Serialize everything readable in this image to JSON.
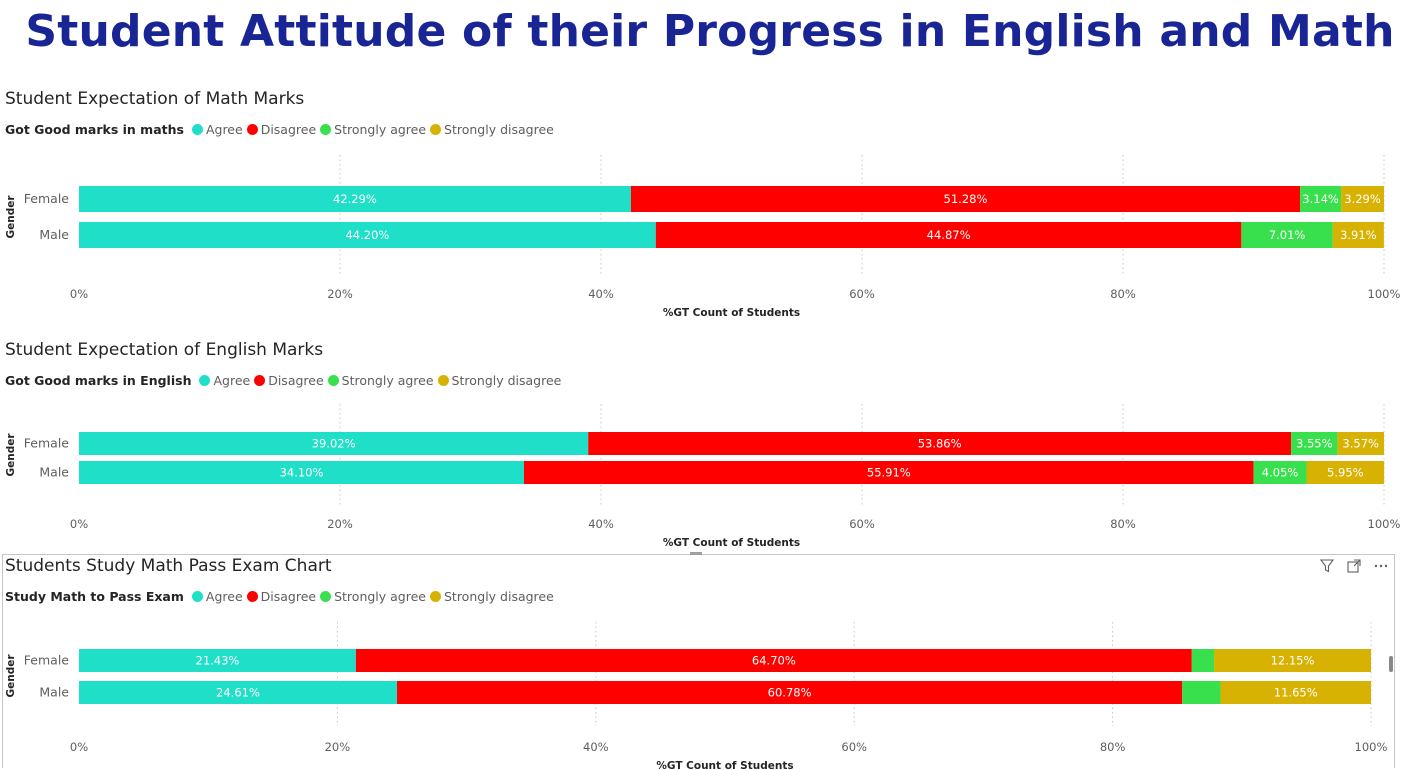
{
  "page": {
    "title": "Student Attitude of their Progress in English and Math"
  },
  "colors": {
    "Agree": "#20dfc8",
    "Disagree": "#ff0000",
    "Strongly agree": "#38e04e",
    "Strongly disagree": "#d7b203"
  },
  "header_icons": [
    "filter-icon",
    "focus-mode-icon",
    "more-options-icon"
  ],
  "chart_data": [
    {
      "type": "bar",
      "stacked": true,
      "orientation": "horizontal",
      "title": "Student Expectation of Math Marks",
      "legend_title": "Got Good marks in maths",
      "legend_position": "top-left",
      "categories": [
        "Female",
        "Male"
      ],
      "series": [
        {
          "name": "Agree",
          "values": [
            42.29,
            44.2
          ],
          "labels": [
            "42.29%",
            "44.20%"
          ]
        },
        {
          "name": "Disagree",
          "values": [
            51.28,
            44.87
          ],
          "labels": [
            "51.28%",
            "44.87%"
          ]
        },
        {
          "name": "Strongly agree",
          "values": [
            3.14,
            7.01
          ],
          "labels": [
            "3.14%",
            "7.01%"
          ]
        },
        {
          "name": "Strongly disagree",
          "values": [
            3.29,
            3.91
          ],
          "labels": [
            "3.29%",
            "3.91%"
          ]
        }
      ],
      "xlabel": "%GT Count of Students",
      "ylabel": "Gender",
      "xlim": [
        0,
        100
      ],
      "xticks": [
        "0%",
        "20%",
        "40%",
        "60%",
        "80%",
        "100%"
      ],
      "grid": true
    },
    {
      "type": "bar",
      "stacked": true,
      "orientation": "horizontal",
      "title": "Student Expectation of English Marks",
      "legend_title": "Got Good marks in English",
      "legend_position": "top-left",
      "categories": [
        "Female",
        "Male"
      ],
      "series": [
        {
          "name": "Agree",
          "values": [
            39.02,
            34.1
          ],
          "labels": [
            "39.02%",
            "34.10%"
          ]
        },
        {
          "name": "Disagree",
          "values": [
            53.86,
            55.91
          ],
          "labels": [
            "53.86%",
            "55.91%"
          ]
        },
        {
          "name": "Strongly agree",
          "values": [
            3.55,
            4.05
          ],
          "labels": [
            "3.55%",
            "4.05%"
          ]
        },
        {
          "name": "Strongly disagree",
          "values": [
            3.57,
            5.95
          ],
          "labels": [
            "3.57%",
            "5.95%"
          ]
        }
      ],
      "xlabel": "%GT Count of Students",
      "ylabel": "Gender",
      "xlim": [
        0,
        100
      ],
      "xticks": [
        "0%",
        "20%",
        "40%",
        "60%",
        "80%",
        "100%"
      ],
      "grid": true
    },
    {
      "type": "bar",
      "stacked": true,
      "orientation": "horizontal",
      "title": "Students Study Math Pass Exam Chart",
      "legend_title": "Study Math to Pass Exam",
      "legend_position": "top-left",
      "categories": [
        "Female",
        "Male"
      ],
      "series": [
        {
          "name": "Agree",
          "values": [
            21.43,
            24.61
          ],
          "labels": [
            "21.43%",
            "24.61%"
          ]
        },
        {
          "name": "Disagree",
          "values": [
            64.7,
            60.78
          ],
          "labels": [
            "64.70%",
            "60.78%"
          ]
        },
        {
          "name": "Strongly agree",
          "values": [
            1.72,
            2.96
          ],
          "labels": [
            "",
            ""
          ]
        },
        {
          "name": "Strongly disagree",
          "values": [
            12.15,
            11.65
          ],
          "labels": [
            "12.15%",
            "11.65%"
          ]
        }
      ],
      "xlabel": "%GT Count of Students",
      "ylabel": "Gender",
      "xlim": [
        0,
        100
      ],
      "xticks": [
        "0%",
        "20%",
        "40%",
        "60%",
        "80%",
        "100%"
      ],
      "grid": true
    }
  ]
}
